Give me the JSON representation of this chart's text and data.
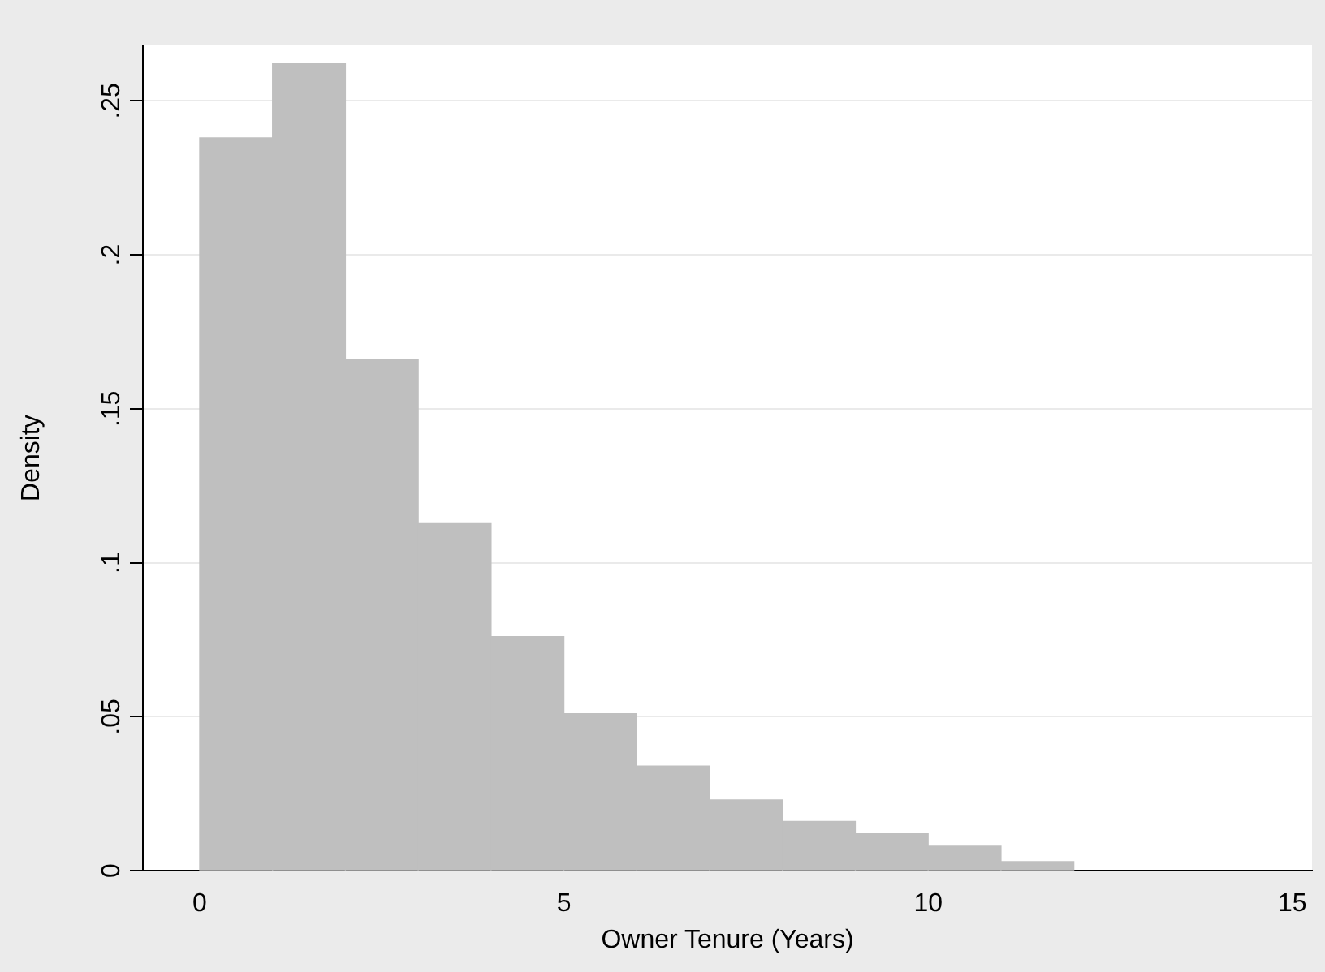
{
  "chart_data": {
    "type": "histogram",
    "xlabel": "Owner Tenure (Years)",
    "ylabel": "Density",
    "bins": [
      0,
      1,
      2,
      3,
      4,
      5,
      6,
      7,
      8,
      9,
      10,
      11,
      12
    ],
    "values": [
      0.238,
      0.262,
      0.166,
      0.113,
      0.076,
      0.051,
      0.034,
      0.023,
      0.016,
      0.012,
      0.008,
      0.003
    ],
    "color": "#bfbfbf",
    "xlim": [
      -0.78,
      15.27
    ],
    "xticks": [
      0,
      5,
      10,
      15
    ],
    "ylim": [
      0,
      0.268
    ],
    "yticks": [
      0,
      {
        "value": 0.05,
        "label": ".05"
      },
      {
        "value": 0.1,
        "label": ".1"
      },
      {
        "value": 0.15,
        "label": ".15"
      },
      {
        "value": 0.2,
        "label": ".2"
      },
      {
        "value": 0.25,
        "label": ".25"
      }
    ],
    "grid": "y",
    "legend": false
  }
}
